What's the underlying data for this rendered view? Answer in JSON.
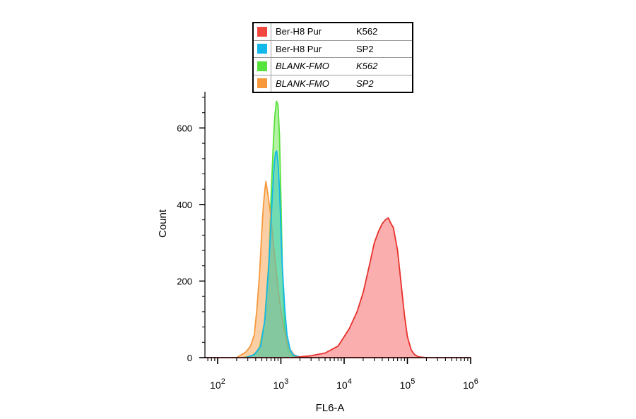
{
  "legend": [
    {
      "label": "Ber-H8  Pur",
      "cell": "K562",
      "color": "#f2473f",
      "italic": false
    },
    {
      "label": "Ber-H8  Pur",
      "cell": "SP2",
      "color": "#12b8ea",
      "italic": false
    },
    {
      "label": "BLANK-FMO",
      "cell": "K562",
      "color": "#56e33b",
      "italic": true
    },
    {
      "label": "BLANK-FMO",
      "cell": "SP2",
      "color": "#f7993a",
      "italic": true
    }
  ],
  "chart_data": {
    "type": "area",
    "xlabel": "FL6-A",
    "ylabel": "Count",
    "xscale": "log",
    "xlim": [
      63,
      1000000
    ],
    "ylim": [
      0,
      680
    ],
    "xticks": [
      {
        "base": "10",
        "exp": "2",
        "value": 100
      },
      {
        "base": "10",
        "exp": "3",
        "value": 1000
      },
      {
        "base": "10",
        "exp": "4",
        "value": 10000
      },
      {
        "base": "10",
        "exp": "5",
        "value": 100000
      },
      {
        "base": "10",
        "exp": "6",
        "value": 1000000
      }
    ],
    "yticks": [
      0,
      200,
      400,
      600
    ],
    "series": [
      {
        "name": "BLANK-FMO K562",
        "color": "#56e33b",
        "fill": "rgba(120,230,90,0.55)",
        "x": [
          63,
          250,
          350,
          450,
          550,
          650,
          700,
          760,
          800,
          850,
          900,
          950,
          1000,
          1050,
          1150,
          1300,
          1500,
          2000,
          1000000
        ],
        "y": [
          0,
          0,
          5,
          20,
          90,
          260,
          420,
          560,
          630,
          670,
          660,
          580,
          420,
          250,
          80,
          20,
          5,
          0,
          0
        ]
      },
      {
        "name": "BLANK-FMO SP2",
        "color": "#f7993a",
        "fill": "rgba(248,165,90,0.55)",
        "x": [
          63,
          200,
          280,
          330,
          380,
          420,
          460,
          500,
          530,
          560,
          580,
          620,
          680,
          750,
          850,
          950,
          1100,
          1300,
          1600,
          2000,
          1000000
        ],
        "y": [
          0,
          0,
          15,
          30,
          60,
          130,
          220,
          330,
          400,
          440,
          460,
          430,
          380,
          310,
          220,
          150,
          80,
          30,
          8,
          0,
          0
        ]
      },
      {
        "name": "Ber-H8  Pur SP2",
        "color": "#12b8ea",
        "fill": "rgba(60,200,190,0.55)",
        "x": [
          63,
          280,
          380,
          480,
          560,
          650,
          720,
          780,
          820,
          860,
          900,
          950,
          1000,
          1050,
          1150,
          1250,
          1400,
          1600,
          2000,
          3000,
          1000000
        ],
        "y": [
          0,
          0,
          8,
          30,
          100,
          250,
          400,
          500,
          535,
          540,
          510,
          440,
          340,
          240,
          130,
          60,
          20,
          6,
          2,
          0,
          0
        ]
      },
      {
        "name": "Ber-H8  Pur K562",
        "color": "#e8312c",
        "fill": "rgba(246,120,120,0.6)",
        "x": [
          63,
          1500,
          3000,
          5000,
          8000,
          12000,
          16000,
          20000,
          25000,
          30000,
          35000,
          40000,
          45000,
          50000,
          55000,
          60000,
          70000,
          80000,
          90000,
          100000,
          115000,
          130000,
          150000,
          200000,
          1000000
        ],
        "y": [
          0,
          0,
          5,
          12,
          30,
          75,
          120,
          170,
          240,
          300,
          330,
          350,
          360,
          365,
          350,
          340,
          280,
          190,
          110,
          55,
          20,
          8,
          2,
          0,
          0
        ]
      }
    ]
  }
}
